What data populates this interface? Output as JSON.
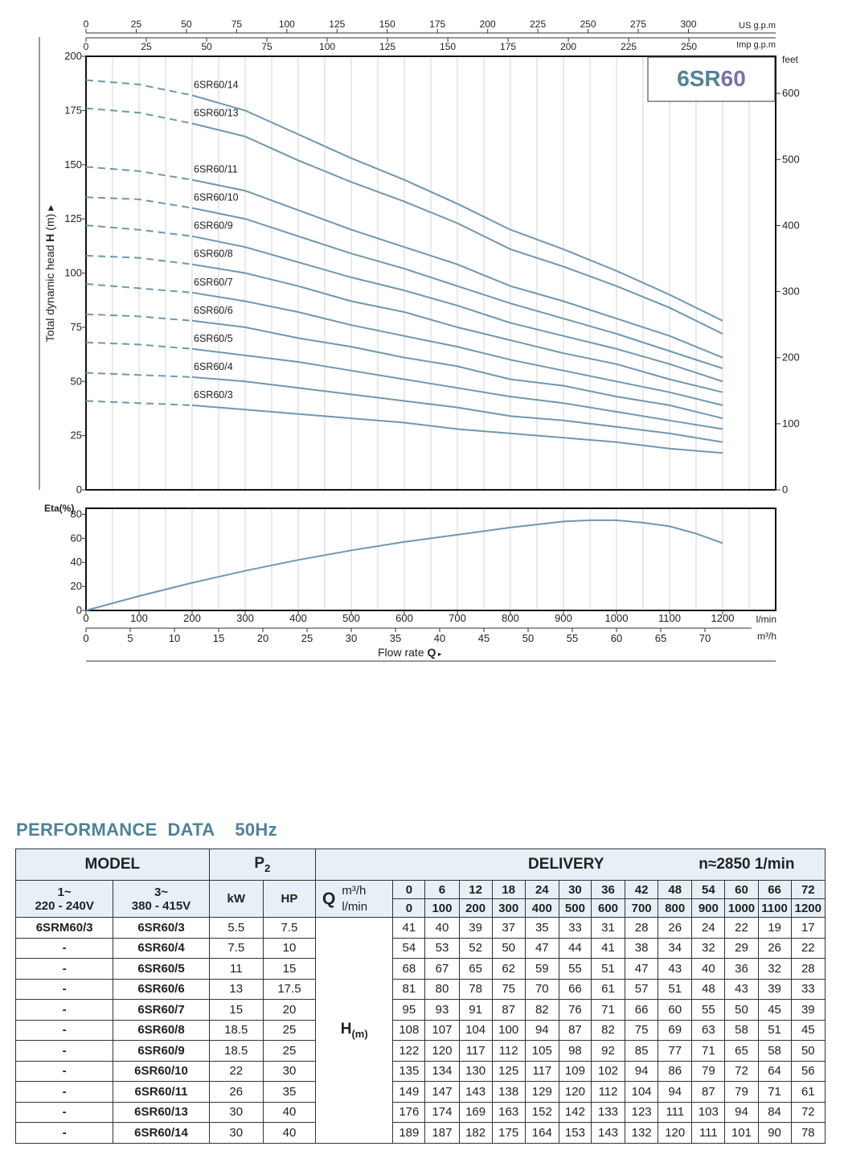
{
  "chart_data": [
    {
      "type": "line",
      "title": "6SR60",
      "title_parts": [
        "6SR",
        "60"
      ],
      "ylabel_prefix": "Total dynamic head ",
      "ylabel_bold": "H",
      "ylabel_suffix": " (m) ▸",
      "ylim": [
        0,
        200
      ],
      "y_ticks": [
        0,
        25,
        50,
        75,
        100,
        125,
        150,
        175,
        200
      ],
      "right_axis_label": "feet",
      "right_axis_ticks": [
        0,
        100,
        200,
        300,
        400,
        500,
        600
      ],
      "top_axis_us_label": "US g.p.m",
      "top_axis_us_ticks": [
        0,
        25,
        50,
        75,
        100,
        125,
        150,
        175,
        200,
        225,
        250,
        275,
        300
      ],
      "top_axis_imp_label": "Imp g.p.m",
      "top_axis_imp_ticks": [
        0,
        25,
        50,
        75,
        100,
        125,
        150,
        175,
        200,
        225,
        250
      ],
      "x_lmin_range": [
        0,
        1300
      ],
      "dashed_until_lmin": 200,
      "grid": true,
      "x": [
        0,
        100,
        200,
        300,
        400,
        500,
        600,
        700,
        800,
        900,
        1000,
        1100,
        1200
      ],
      "series": [
        {
          "name": "6SR60/14",
          "values": [
            189,
            187,
            182,
            175,
            164,
            153,
            143,
            132,
            120,
            111,
            101,
            90,
            78
          ]
        },
        {
          "name": "6SR60/13",
          "values": [
            176,
            174,
            169,
            163,
            152,
            142,
            133,
            123,
            111,
            103,
            94,
            84,
            72
          ]
        },
        {
          "name": "6SR60/11",
          "values": [
            149,
            147,
            143,
            138,
            129,
            120,
            112,
            104,
            94,
            87,
            79,
            71,
            61
          ]
        },
        {
          "name": "6SR60/10",
          "values": [
            135,
            134,
            130,
            125,
            117,
            109,
            102,
            94,
            86,
            79,
            72,
            64,
            56
          ]
        },
        {
          "name": "6SR60/9",
          "values": [
            122,
            120,
            117,
            112,
            105,
            98,
            92,
            85,
            77,
            71,
            65,
            58,
            50
          ]
        },
        {
          "name": "6SR60/8",
          "values": [
            108,
            107,
            104,
            100,
            94,
            87,
            82,
            75,
            69,
            63,
            58,
            51,
            45
          ]
        },
        {
          "name": "6SR60/7",
          "values": [
            95,
            93,
            91,
            87,
            82,
            76,
            71,
            66,
            60,
            55,
            50,
            45,
            39
          ]
        },
        {
          "name": "6SR60/6",
          "values": [
            81,
            80,
            78,
            75,
            70,
            66,
            61,
            57,
            51,
            48,
            43,
            39,
            33
          ]
        },
        {
          "name": "6SR60/5",
          "values": [
            68,
            67,
            65,
            62,
            59,
            55,
            51,
            47,
            43,
            40,
            36,
            32,
            28
          ]
        },
        {
          "name": "6SR60/4",
          "values": [
            54,
            53,
            52,
            50,
            47,
            44,
            41,
            38,
            34,
            32,
            29,
            26,
            22
          ]
        },
        {
          "name": "6SR60/3",
          "values": [
            41,
            40,
            39,
            37,
            35,
            33,
            31,
            28,
            26,
            24,
            22,
            19,
            17
          ]
        }
      ],
      "line_color": "#6e98b0",
      "title_color_1": "#4f8397",
      "title_color_2": "#7f6dab"
    },
    {
      "type": "line",
      "ylabel": "Eta(%)",
      "ylim": [
        0,
        85
      ],
      "y_ticks": [
        0,
        20,
        40,
        60,
        80
      ],
      "xlabel_prefix": "Flow  rate  ",
      "xlabel_bold": "Q",
      "xlabel_arrow": "▸",
      "x_lmin_label": "l/min",
      "x_lmin_ticks": [
        0,
        100,
        200,
        300,
        400,
        500,
        600,
        700,
        800,
        900,
        1000,
        1100,
        1200
      ],
      "x_m3h_label": "m³/h",
      "x_m3h_ticks": [
        0,
        5,
        10,
        15,
        20,
        25,
        30,
        35,
        40,
        45,
        50,
        55,
        60,
        65,
        70
      ],
      "grid": true,
      "x": [
        0,
        100,
        200,
        300,
        400,
        500,
        600,
        700,
        800,
        900,
        950,
        1000,
        1050,
        1100,
        1150,
        1200
      ],
      "series": [
        {
          "values": [
            0,
            12,
            23,
            33,
            42,
            50,
            57,
            63,
            69,
            74,
            75,
            75,
            73,
            70,
            64,
            56
          ]
        }
      ]
    }
  ],
  "perf": {
    "title": "PERFORMANCE  DATA    50Hz",
    "model_header": "MODEL",
    "p2_header": "P",
    "p2_sub": "2",
    "delivery_header": "DELIVERY",
    "speed": "n≈2850 1/min",
    "phase1": "1~",
    "volt1": "220 - 240V",
    "phase3": "3~",
    "volt3": "380 - 415V",
    "kw": "kW",
    "hp": "HP",
    "q_letter": "Q",
    "unit_m3h": "m³/h",
    "unit_lmin": "l/min",
    "h_label": "H",
    "h_unit": "(m)",
    "q_m3h": [
      "0",
      "6",
      "12",
      "18",
      "24",
      "30",
      "36",
      "42",
      "48",
      "54",
      "60",
      "66",
      "72"
    ],
    "q_lmin": [
      "0",
      "100",
      "200",
      "300",
      "400",
      "500",
      "600",
      "700",
      "800",
      "900",
      "1000",
      "1100",
      "1200"
    ],
    "rows": [
      {
        "m1": "6SRM60/3",
        "m3": "6SR60/3",
        "kw": "5.5",
        "hp": "7.5",
        "h": [
          "41",
          "40",
          "39",
          "37",
          "35",
          "33",
          "31",
          "28",
          "26",
          "24",
          "22",
          "19",
          "17"
        ]
      },
      {
        "m1": "-",
        "m3": "6SR60/4",
        "kw": "7.5",
        "hp": "10",
        "h": [
          "54",
          "53",
          "52",
          "50",
          "47",
          "44",
          "41",
          "38",
          "34",
          "32",
          "29",
          "26",
          "22"
        ]
      },
      {
        "m1": "-",
        "m3": "6SR60/5",
        "kw": "11",
        "hp": "15",
        "h": [
          "68",
          "67",
          "65",
          "62",
          "59",
          "55",
          "51",
          "47",
          "43",
          "40",
          "36",
          "32",
          "28"
        ]
      },
      {
        "m1": "-",
        "m3": "6SR60/6",
        "kw": "13",
        "hp": "17.5",
        "h": [
          "81",
          "80",
          "78",
          "75",
          "70",
          "66",
          "61",
          "57",
          "51",
          "48",
          "43",
          "39",
          "33"
        ]
      },
      {
        "m1": "-",
        "m3": "6SR60/7",
        "kw": "15",
        "hp": "20",
        "h": [
          "95",
          "93",
          "91",
          "87",
          "82",
          "76",
          "71",
          "66",
          "60",
          "55",
          "50",
          "45",
          "39"
        ]
      },
      {
        "m1": "-",
        "m3": "6SR60/8",
        "kw": "18.5",
        "hp": "25",
        "h": [
          "108",
          "107",
          "104",
          "100",
          "94",
          "87",
          "82",
          "75",
          "69",
          "63",
          "58",
          "51",
          "45"
        ]
      },
      {
        "m1": "-",
        "m3": "6SR60/9",
        "kw": "18.5",
        "hp": "25",
        "h": [
          "122",
          "120",
          "117",
          "112",
          "105",
          "98",
          "92",
          "85",
          "77",
          "71",
          "65",
          "58",
          "50"
        ]
      },
      {
        "m1": "-",
        "m3": "6SR60/10",
        "kw": "22",
        "hp": "30",
        "h": [
          "135",
          "134",
          "130",
          "125",
          "117",
          "109",
          "102",
          "94",
          "86",
          "79",
          "72",
          "64",
          "56"
        ]
      },
      {
        "m1": "-",
        "m3": "6SR60/11",
        "kw": "26",
        "hp": "35",
        "h": [
          "149",
          "147",
          "143",
          "138",
          "129",
          "120",
          "112",
          "104",
          "94",
          "87",
          "79",
          "71",
          "61"
        ]
      },
      {
        "m1": "-",
        "m3": "6SR60/13",
        "kw": "30",
        "hp": "40",
        "h": [
          "176",
          "174",
          "169",
          "163",
          "152",
          "142",
          "133",
          "123",
          "111",
          "103",
          "94",
          "84",
          "72"
        ]
      },
      {
        "m1": "-",
        "m3": "6SR60/14",
        "kw": "30",
        "hp": "40",
        "h": [
          "189",
          "187",
          "182",
          "175",
          "164",
          "153",
          "143",
          "132",
          "120",
          "111",
          "101",
          "90",
          "78"
        ]
      }
    ],
    "header_bg": "#e6f0f6"
  }
}
